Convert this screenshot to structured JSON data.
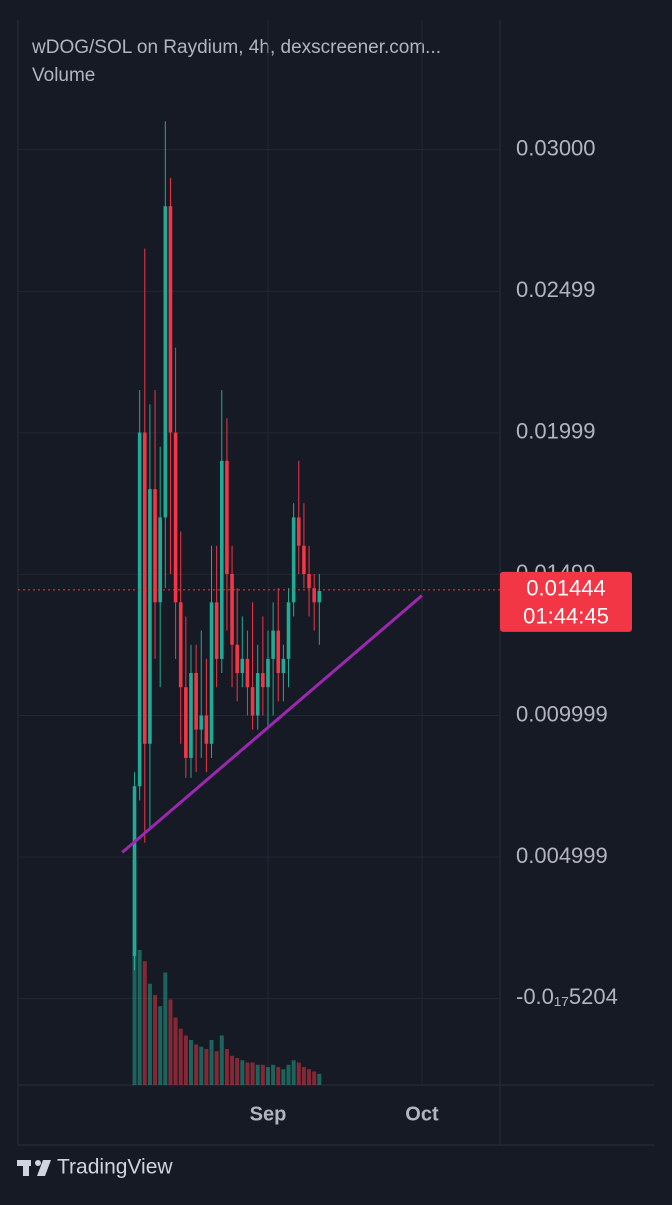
{
  "chart_data": {
    "type": "candlestick",
    "title": "wDOG/SOL on Raydium, 4h, dexscreener.com...",
    "volume_label": "Volume",
    "up_color": "#22ab94",
    "down_color": "#f23645",
    "x": [
      -26,
      -25,
      -24,
      -23,
      -22,
      -21,
      -20,
      -19,
      -18,
      -17,
      -16,
      -15,
      -14,
      -13,
      -12,
      -11,
      -10,
      -9,
      -8,
      -7,
      -6,
      -5,
      -4,
      -3,
      -2,
      -1,
      0,
      1,
      2,
      3,
      4,
      5,
      6,
      7,
      8,
      9,
      10
    ],
    "open": [
      0.0015,
      0.0075,
      0.02,
      0.009,
      0.018,
      0.014,
      0.017,
      0.028,
      0.02,
      0.014,
      0.011,
      0.0085,
      0.0115,
      0.0095,
      0.01,
      0.009,
      0.014,
      0.012,
      0.019,
      0.015,
      0.0125,
      0.0115,
      0.012,
      0.011,
      0.01,
      0.0115,
      0.011,
      0.012,
      0.013,
      0.0115,
      0.012,
      0.014,
      0.017,
      0.016,
      0.015,
      0.0145,
      0.014
    ],
    "high": [
      0.008,
      0.0215,
      0.0265,
      0.021,
      0.0215,
      0.0195,
      0.031,
      0.029,
      0.023,
      0.0165,
      0.0135,
      0.0125,
      0.0125,
      0.013,
      0.012,
      0.016,
      0.016,
      0.0215,
      0.0205,
      0.016,
      0.0145,
      0.0135,
      0.013,
      0.014,
      0.0125,
      0.0135,
      0.013,
      0.014,
      0.0145,
      0.0125,
      0.0145,
      0.0175,
      0.019,
      0.0175,
      0.016,
      0.015,
      0.015
    ],
    "low": [
      0.001,
      0.007,
      0.0055,
      0.006,
      0.012,
      0.011,
      0.0145,
      0.015,
      0.012,
      0.009,
      0.0078,
      0.0078,
      0.008,
      0.0085,
      0.008,
      0.0085,
      0.011,
      0.0115,
      0.013,
      0.011,
      0.0105,
      0.011,
      0.01,
      0.0095,
      0.0095,
      0.01,
      0.0095,
      0.01,
      0.0105,
      0.0105,
      0.011,
      0.0135,
      0.015,
      0.0145,
      0.0135,
      0.013,
      0.0125
    ],
    "close": [
      0.0075,
      0.02,
      0.009,
      0.018,
      0.014,
      0.017,
      0.028,
      0.02,
      0.014,
      0.011,
      0.0085,
      0.0115,
      0.0095,
      0.01,
      0.009,
      0.014,
      0.012,
      0.019,
      0.015,
      0.0125,
      0.0115,
      0.012,
      0.011,
      0.01,
      0.0115,
      0.011,
      0.012,
      0.013,
      0.0115,
      0.012,
      0.014,
      0.017,
      0.016,
      0.015,
      0.0145,
      0.014,
      0.0144
    ],
    "volume": [
      100,
      60,
      55,
      45,
      40,
      35,
      50,
      38,
      30,
      25,
      22,
      20,
      18,
      17,
      16,
      20,
      15,
      22,
      16,
      13,
      12,
      11,
      10,
      10,
      9,
      9,
      8,
      9,
      8,
      7,
      9,
      11,
      10,
      8,
      7,
      6,
      5
    ],
    "xlim": [
      -48.7,
      45.2
    ],
    "xticks": [
      {
        "value": 0,
        "label": "Sep"
      },
      {
        "value": 30,
        "label": "Oct"
      }
    ],
    "ylim": [
      -0.00306,
      0.03458
    ],
    "yticks": [
      {
        "value": -5.204e-18,
        "label": "-0.0₁₇5204"
      },
      {
        "value": 0.004999,
        "label": "0.004999"
      },
      {
        "value": 0.009999,
        "label": "0.009999"
      },
      {
        "value": 0.01499,
        "label": "0.01499"
      },
      {
        "value": 0.01999,
        "label": "0.01999"
      },
      {
        "value": 0.02499,
        "label": "0.02499"
      },
      {
        "value": 0.03,
        "label": "0.03000"
      }
    ],
    "grid": true,
    "last_price": {
      "value": 0.01444,
      "label": "0.01444"
    },
    "countdown": "01:44:45",
    "trendline": {
      "color": "#9c27b0",
      "x": [
        -28.4,
        30
      ],
      "y": [
        0.00516,
        0.01424
      ]
    }
  },
  "footer": {
    "brand": "TradingView"
  }
}
